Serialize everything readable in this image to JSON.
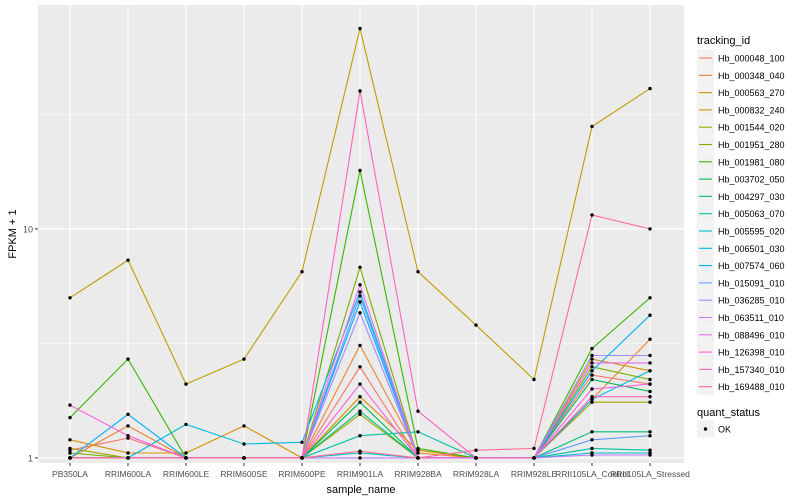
{
  "chart_data": {
    "type": "line",
    "title": "",
    "xlabel": "sample_name",
    "ylabel": "FPKM + 1",
    "y_scale": "log10",
    "ylim": [
      0.95,
      95
    ],
    "y_ticks": [
      {
        "value": 1,
        "label": "1"
      },
      {
        "value": 10,
        "label": "10"
      }
    ],
    "categories": [
      "PB350LA",
      "RRIM600LA",
      "RRIM600LE",
      "RRIM600SE",
      "RRIM600PE",
      "RRIM901LA",
      "RRIM928BA",
      "RRIM928LA",
      "RRIM928LE",
      "RRII105LA_Control",
      "RRII105LA_Stressed"
    ],
    "grid": true,
    "legend": {
      "title": "tracking_id",
      "position": "right",
      "shape_title": "quant_status",
      "shape_entries": [
        "OK"
      ]
    },
    "series": [
      {
        "name": "Hb_000048_100",
        "color": "#F8766D",
        "values": [
          1.08,
          1.22,
          1.0,
          1.0,
          1.0,
          2.5,
          1.0,
          1.0,
          1.0,
          2.3,
          2.1
        ]
      },
      {
        "name": "Hb_000348_040",
        "color": "#EA8331",
        "values": [
          1.0,
          1.38,
          1.0,
          1.0,
          1.0,
          3.1,
          1.05,
          1.0,
          1.0,
          1.8,
          3.3
        ]
      },
      {
        "name": "Hb_000563_270",
        "color": "#D89000",
        "values": [
          1.2,
          1.05,
          1.05,
          1.38,
          1.0,
          1.85,
          1.08,
          1.0,
          1.0,
          2.7,
          2.4
        ]
      },
      {
        "name": "Hb_000832_240",
        "color": "#C09B00",
        "values": [
          5.0,
          7.3,
          2.1,
          2.7,
          6.5,
          75,
          6.5,
          3.8,
          2.2,
          28,
          41
        ]
      },
      {
        "name": "Hb_001544_020",
        "color": "#A3A500",
        "values": [
          1.1,
          1.0,
          1.0,
          1.0,
          1.0,
          1.55,
          1.0,
          1.0,
          1.0,
          1.75,
          1.75
        ]
      },
      {
        "name": "Hb_001951_280",
        "color": "#7CAE00",
        "values": [
          1.05,
          1.0,
          1.0,
          1.0,
          1.0,
          6.8,
          1.0,
          1.0,
          1.0,
          2.5,
          2.2
        ]
      },
      {
        "name": "Hb_001981_080",
        "color": "#39B600",
        "values": [
          1.5,
          2.7,
          1.0,
          1.0,
          1.0,
          18,
          1.1,
          1.0,
          1.0,
          3.0,
          5.0
        ]
      },
      {
        "name": "Hb_003702_050",
        "color": "#00BB4E",
        "values": [
          1.0,
          1.0,
          1.0,
          1.0,
          1.0,
          1.75,
          1.0,
          1.0,
          1.0,
          2.2,
          1.95
        ]
      },
      {
        "name": "Hb_004297_030",
        "color": "#00BF7D",
        "values": [
          1.0,
          1.0,
          1.0,
          1.0,
          1.0,
          1.6,
          1.0,
          1.0,
          1.0,
          1.3,
          1.3
        ]
      },
      {
        "name": "Hb_005063_070",
        "color": "#00C1A3",
        "values": [
          1.0,
          1.0,
          1.0,
          1.0,
          1.0,
          1.25,
          1.3,
          1.0,
          1.0,
          1.1,
          1.08
        ]
      },
      {
        "name": "Hb_005595_020",
        "color": "#00BFC4",
        "values": [
          1.0,
          1.0,
          1.0,
          1.0,
          1.0,
          1.05,
          1.0,
          1.0,
          1.0,
          1.05,
          1.05
        ]
      },
      {
        "name": "Hb_006501_030",
        "color": "#00B9E3",
        "values": [
          1.0,
          1.0,
          1.4,
          1.15,
          1.17,
          5.3,
          1.0,
          1.0,
          1.0,
          1.8,
          2.4
        ]
      },
      {
        "name": "Hb_007574_060",
        "color": "#00ADFA",
        "values": [
          1.0,
          1.55,
          1.0,
          1.0,
          1.0,
          4.8,
          1.0,
          1.0,
          1.0,
          2.4,
          4.2
        ]
      },
      {
        "name": "Hb_015091_010",
        "color": "#619CFF",
        "values": [
          1.0,
          1.0,
          1.0,
          1.0,
          1.0,
          5.1,
          1.0,
          1.0,
          1.0,
          1.2,
          1.25
        ]
      },
      {
        "name": "Hb_036285_010",
        "color": "#9F8CFF",
        "values": [
          1.0,
          1.0,
          1.0,
          1.0,
          1.0,
          4.3,
          1.0,
          1.0,
          1.0,
          2.8,
          2.8
        ]
      },
      {
        "name": "Hb_063511_010",
        "color": "#C77CFF",
        "values": [
          1.0,
          1.0,
          1.0,
          1.0,
          1.0,
          1.0,
          1.0,
          1.0,
          1.0,
          1.03,
          1.03
        ]
      },
      {
        "name": "Hb_088496_010",
        "color": "#E76BF3",
        "values": [
          1.0,
          1.0,
          1.0,
          1.0,
          1.0,
          5.7,
          1.0,
          1.0,
          1.0,
          2.6,
          2.6
        ]
      },
      {
        "name": "Hb_126398_010",
        "color": "#FA62DB",
        "values": [
          1.7,
          1.25,
          1.0,
          1.0,
          1.0,
          2.1,
          1.0,
          1.0,
          1.0,
          2.0,
          2.1
        ]
      },
      {
        "name": "Hb_157340_010",
        "color": "#FF62BC",
        "values": [
          1.0,
          1.0,
          1.0,
          1.0,
          1.0,
          40,
          1.6,
          1.0,
          1.0,
          1.85,
          1.85
        ]
      },
      {
        "name": "Hb_169488_010",
        "color": "#FF6C91",
        "values": [
          1.0,
          1.0,
          1.0,
          1.0,
          1.0,
          1.07,
          1.0,
          1.08,
          1.1,
          11.5,
          10.0
        ]
      }
    ]
  }
}
